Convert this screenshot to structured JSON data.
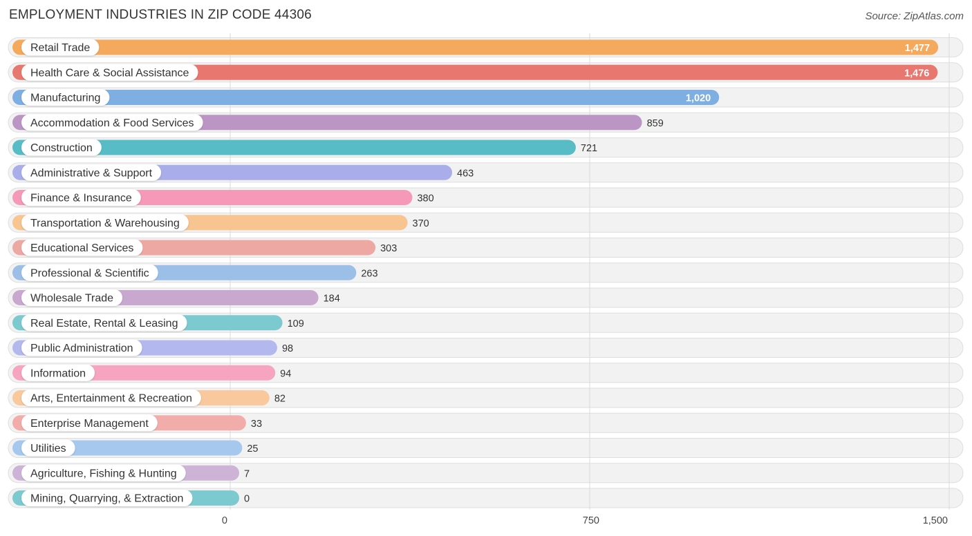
{
  "title": "EMPLOYMENT INDUSTRIES IN ZIP CODE 44306",
  "source": "Source: ZipAtlas.com",
  "chart_data": {
    "type": "bar",
    "orientation": "horizontal",
    "title": "EMPLOYMENT INDUSTRIES IN ZIP CODE 44306",
    "xlabel": "",
    "ylabel": "",
    "xlim": [
      0,
      1500
    ],
    "xticks": [
      0,
      750,
      1500
    ],
    "xtick_labels": [
      "0",
      "750",
      "1,500"
    ],
    "grid": true,
    "categories": [
      "Retail Trade",
      "Health Care & Social Assistance",
      "Manufacturing",
      "Accommodation & Food Services",
      "Construction",
      "Administrative & Support",
      "Finance & Insurance",
      "Transportation & Warehousing",
      "Educational Services",
      "Professional & Scientific",
      "Wholesale Trade",
      "Real Estate, Rental & Leasing",
      "Public Administration",
      "Information",
      "Arts, Entertainment & Recreation",
      "Enterprise Management",
      "Utilities",
      "Agriculture, Fishing & Hunting",
      "Mining, Quarrying, & Extraction"
    ],
    "values": [
      1477,
      1476,
      1020,
      859,
      721,
      463,
      380,
      370,
      303,
      263,
      184,
      109,
      98,
      94,
      82,
      33,
      25,
      7,
      0
    ],
    "value_labels": [
      "1,477",
      "1,476",
      "1,020",
      "859",
      "721",
      "463",
      "380",
      "370",
      "303",
      "263",
      "184",
      "109",
      "98",
      "94",
      "82",
      "33",
      "25",
      "7",
      "0"
    ],
    "colors": [
      "#f5a95c",
      "#e8786f",
      "#7eaee2",
      "#bb96c4",
      "#58bcc6",
      "#a9aeea",
      "#f698b8",
      "#f8c490",
      "#eea8a4",
      "#9cbfe8",
      "#c9a8d0",
      "#7ccad0",
      "#b3b8ee",
      "#f6a4c0",
      "#f9c89c",
      "#f2adab",
      "#a6c8ee",
      "#cdb4d6",
      "#7ccacf"
    ]
  }
}
